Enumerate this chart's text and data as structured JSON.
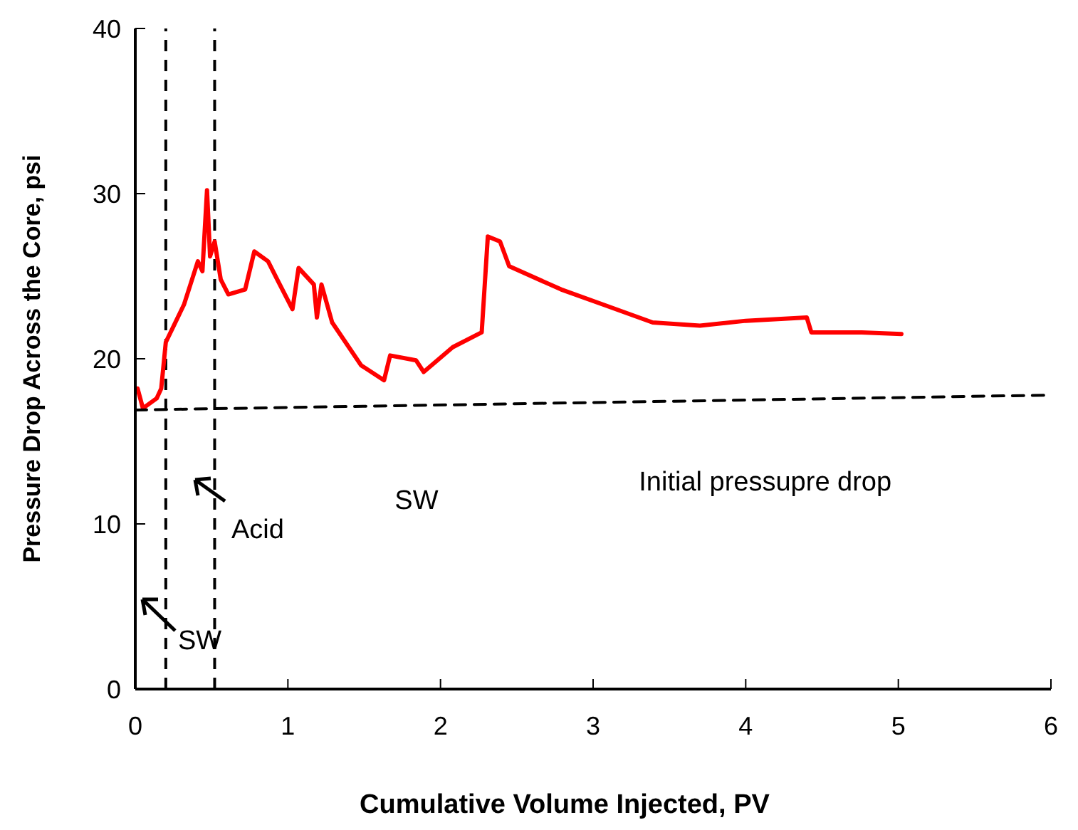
{
  "chart_data": {
    "type": "line",
    "xlabel": "Cumulative Volume Injected, PV",
    "ylabel": "Pressure Drop Across the Core, psi",
    "xlim": [
      0,
      6
    ],
    "xticks": [
      0,
      1,
      2,
      3,
      4,
      5,
      6
    ],
    "ylim": [
      0,
      40
    ],
    "yticks": [
      0,
      10,
      20,
      30,
      40
    ],
    "grid": false,
    "series": [
      {
        "color": "#ff0000",
        "line_style": "solid",
        "x": [
          0.015,
          0.05,
          0.14,
          0.17,
          0.2,
          0.32,
          0.41,
          0.44,
          0.47,
          0.49,
          0.52,
          0.56,
          0.61,
          0.72,
          0.78,
          0.87,
          0.93,
          1.03,
          1.07,
          1.17,
          1.19,
          1.22,
          1.29,
          1.48,
          1.63,
          1.67,
          1.84,
          1.89,
          2.08,
          2.27,
          2.31,
          2.39,
          2.45,
          2.79,
          3.09,
          3.39,
          3.7,
          4.0,
          4.4,
          4.43,
          4.76,
          5.02
        ],
        "values": [
          18.2,
          17.0,
          17.6,
          18.2,
          21.0,
          23.3,
          25.9,
          25.3,
          30.2,
          26.2,
          27.1,
          24.8,
          23.9,
          24.2,
          26.5,
          25.9,
          24.8,
          23.0,
          25.5,
          24.5,
          22.5,
          24.5,
          22.2,
          19.6,
          18.7,
          20.2,
          19.9,
          19.2,
          20.7,
          21.6,
          27.4,
          27.1,
          25.6,
          24.2,
          23.2,
          22.2,
          22.0,
          22.3,
          22.5,
          21.6,
          21.6,
          21.5
        ]
      },
      {
        "color": "#000000",
        "line_style": "dashed",
        "x": [
          0,
          6
        ],
        "values": [
          16.9,
          17.8
        ]
      }
    ],
    "ref_lines": [
      {
        "axis": "x",
        "value": 0.2,
        "color": "#000000",
        "line_style": "dashed"
      },
      {
        "axis": "x",
        "value": 0.52,
        "color": "#000000",
        "line_style": "dashed"
      }
    ],
    "annotations": [
      "SW",
      "Acid",
      "SW",
      "Initial pressupre drop"
    ]
  }
}
